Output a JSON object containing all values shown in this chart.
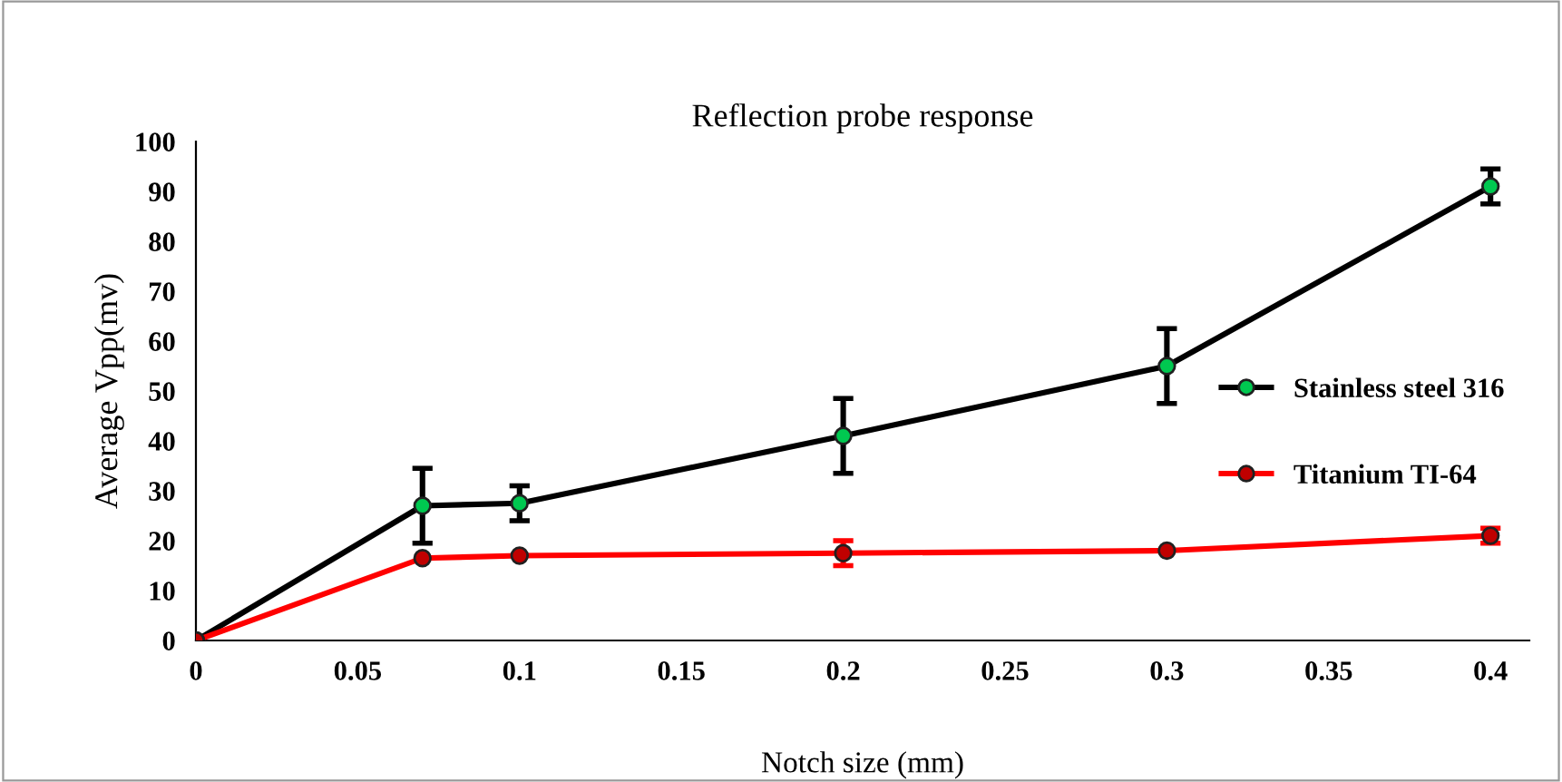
{
  "chart_data": {
    "type": "line",
    "title": "Reflection probe response",
    "xlabel": "Notch size (mm)",
    "ylabel": "Average Vpp(mv)",
    "x": [
      0,
      0.07,
      0.1,
      0.2,
      0.3,
      0.4
    ],
    "series": [
      {
        "name": "Stainless steel 316",
        "color": "#000000",
        "colors": [
          "#00c850",
          "#00c850",
          "#00c850",
          "#00c850",
          "#00c850",
          "#00c850"
        ],
        "values": [
          0,
          27,
          27.5,
          41,
          55,
          91
        ],
        "errors": [
          null,
          7.5,
          3.5,
          7.5,
          7.5,
          3.5
        ]
      },
      {
        "name": "Titanium TI-64",
        "color": "#ff0000",
        "colors": [
          "#c00000",
          "#c00000",
          "#c00000",
          "#c00000",
          "#c00000",
          "#c00000"
        ],
        "values": [
          0,
          16.5,
          17,
          17.5,
          18,
          21
        ],
        "errors": [
          null,
          null,
          null,
          2.5,
          null,
          1.5
        ]
      }
    ],
    "xlim": [
      0,
      0.412
    ],
    "xticks": [
      0,
      0.05,
      0.1,
      0.15,
      0.2,
      0.25,
      0.3,
      0.35,
      0.4
    ],
    "ylim": [
      0,
      100
    ],
    "yticks": [
      0,
      10,
      20,
      30,
      40,
      50,
      60,
      70,
      80,
      90,
      100
    ],
    "marker": "circle",
    "line_style": "solid",
    "legend": "right",
    "grid": false
  }
}
